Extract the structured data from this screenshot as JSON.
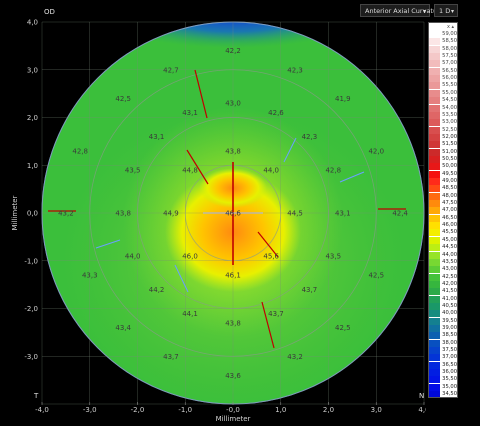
{
  "header": {
    "eye_label": "OD",
    "map_select": "Anterior Axial Curvature",
    "step_select": "1 D"
  },
  "corner_labels": {
    "bottom_left": "T",
    "bottom_right": "N"
  },
  "axes": {
    "xlabel": "Millimeter",
    "ylabel": "Millimeter",
    "x_ticks": [
      "-4,0",
      "-3,0",
      "-2,0",
      "-1,0",
      "-0,0",
      "1,0",
      "2,0",
      "3,0",
      "4,0"
    ],
    "y_ticks": [
      "4,0",
      "3,0",
      "2,0",
      "1,0",
      "0,0",
      "-1,0",
      "-2,0",
      "-3,0"
    ]
  },
  "scale": {
    "close_label": "x ▴",
    "steps": [
      "59,00",
      "58,50",
      "58,00",
      "57,50",
      "57,00",
      "56,50",
      "56,00",
      "55,50",
      "55,00",
      "54,50",
      "54,00",
      "53,50",
      "53,00",
      "52,50",
      "52,00",
      "51,50",
      "51,00",
      "50,50",
      "50,00",
      "49,50",
      "49,00",
      "48,50",
      "48,00",
      "47,50",
      "47,00",
      "46,50",
      "46,00",
      "45,50",
      "45,00",
      "44,50",
      "44,00",
      "43,50",
      "43,00",
      "42,50",
      "42,00",
      "41,50",
      "41,00",
      "40,50",
      "40,00",
      "39,50",
      "39,00",
      "38,50",
      "38,00",
      "37,50",
      "37,00",
      "36,50",
      "36,00",
      "35,50",
      "35,00",
      "34,50"
    ],
    "colors": [
      "#ffffff",
      "#fbe6e6",
      "#f7d6d6",
      "#f4c8c8",
      "#f2bcbc",
      "#f0b0b0",
      "#eda4a4",
      "#ea9898",
      "#e88c8c",
      "#e58080",
      "#e27272",
      "#df6666",
      "#dc5a5a",
      "#d84e4e",
      "#d44242",
      "#d03636",
      "#cc2a2a",
      "#d82020",
      "#e81818",
      "#f51010",
      "#ff2a1a",
      "#ff4a14",
      "#ff6a10",
      "#ff8a0c",
      "#ffa808",
      "#ffc404",
      "#ffe000",
      "#f4ee00",
      "#ddf200",
      "#bcee14",
      "#96e428",
      "#78d832",
      "#5ccc36",
      "#44c23a",
      "#36b63e",
      "#2caa48",
      "#22a058",
      "#1a9868",
      "#168c80",
      "#148090",
      "#1070a0",
      "#0c60b0",
      "#0850c0",
      "#0642cc",
      "#0434d6",
      "#0228de",
      "#021ee2",
      "#0214e6",
      "#020ce6",
      "#0008d8"
    ]
  },
  "chart_data": {
    "type": "heatmap",
    "title": "",
    "xlabel": "Millimeter",
    "ylabel": "Millimeter",
    "xlim": [
      -4,
      4
    ],
    "ylim": [
      -4,
      4
    ],
    "grid": true,
    "legend": "right",
    "unit": "D",
    "rings_mm": [
      1,
      2,
      3,
      4
    ],
    "points": [
      {
        "x": 0.0,
        "y": 3.4,
        "v": "42,2"
      },
      {
        "x": -1.3,
        "y": 3.0,
        "v": "42,7"
      },
      {
        "x": 1.3,
        "y": 3.0,
        "v": "42,3"
      },
      {
        "x": -2.3,
        "y": 2.4,
        "v": "42,5"
      },
      {
        "x": 2.3,
        "y": 2.4,
        "v": "41,9"
      },
      {
        "x": -0.9,
        "y": 2.1,
        "v": "43,1"
      },
      {
        "x": 0.0,
        "y": 2.3,
        "v": "43,0"
      },
      {
        "x": 0.9,
        "y": 2.1,
        "v": "42,6"
      },
      {
        "x": -1.6,
        "y": 1.6,
        "v": "43,1"
      },
      {
        "x": 1.6,
        "y": 1.6,
        "v": "42,3"
      },
      {
        "x": -3.2,
        "y": 1.3,
        "v": "42,8"
      },
      {
        "x": 3.0,
        "y": 1.3,
        "v": "42,0"
      },
      {
        "x": -0.9,
        "y": 0.9,
        "v": "44,8"
      },
      {
        "x": 0.0,
        "y": 1.3,
        "v": "43,8"
      },
      {
        "x": 0.8,
        "y": 0.9,
        "v": "44,0"
      },
      {
        "x": -2.1,
        "y": 0.9,
        "v": "43,5"
      },
      {
        "x": 2.1,
        "y": 0.9,
        "v": "42,8"
      },
      {
        "x": -3.5,
        "y": 0.0,
        "v": "43,2"
      },
      {
        "x": -2.3,
        "y": 0.0,
        "v": "43,8"
      },
      {
        "x": -1.3,
        "y": 0.0,
        "v": "44,9"
      },
      {
        "x": 0.0,
        "y": 0.0,
        "v": "46,6"
      },
      {
        "x": 1.3,
        "y": 0.0,
        "v": "44,5"
      },
      {
        "x": 2.3,
        "y": 0.0,
        "v": "43,1"
      },
      {
        "x": 3.5,
        "y": 0.0,
        "v": "42,4"
      },
      {
        "x": -2.1,
        "y": -0.9,
        "v": "44,0"
      },
      {
        "x": -0.9,
        "y": -0.9,
        "v": "46,0"
      },
      {
        "x": 0.8,
        "y": -0.9,
        "v": "45,6"
      },
      {
        "x": 2.1,
        "y": -0.9,
        "v": "43,5"
      },
      {
        "x": 0.0,
        "y": -1.3,
        "v": "46,1"
      },
      {
        "x": -3.0,
        "y": -1.3,
        "v": "43,3"
      },
      {
        "x": 3.0,
        "y": -1.3,
        "v": "42,5"
      },
      {
        "x": -1.6,
        "y": -1.6,
        "v": "44,2"
      },
      {
        "x": 1.6,
        "y": -1.6,
        "v": "43,7"
      },
      {
        "x": -0.9,
        "y": -2.1,
        "v": "44,1"
      },
      {
        "x": 0.9,
        "y": -2.1,
        "v": "43,7"
      },
      {
        "x": 0.0,
        "y": -2.3,
        "v": "43,8"
      },
      {
        "x": -2.3,
        "y": -2.4,
        "v": "43,4"
      },
      {
        "x": 2.3,
        "y": -2.4,
        "v": "42,5"
      },
      {
        "x": -1.3,
        "y": -3.0,
        "v": "43,7"
      },
      {
        "x": 1.3,
        "y": -3.0,
        "v": "43,2"
      },
      {
        "x": 0.0,
        "y": -3.4,
        "v": "43,6"
      }
    ]
  }
}
